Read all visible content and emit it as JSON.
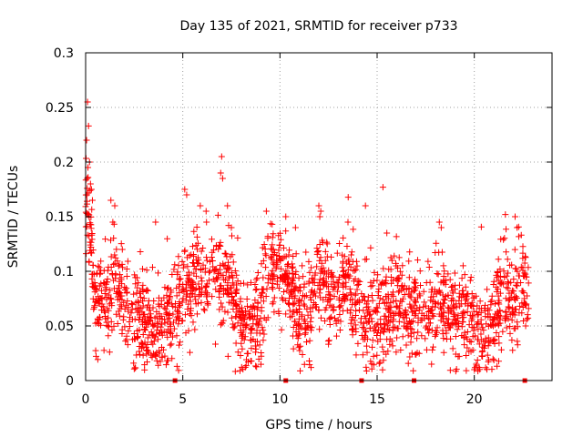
{
  "chart_data": {
    "type": "scatter",
    "title": "Day 135 of 2021, SRMTID for receiver p733",
    "xlabel": "GPS time / hours",
    "ylabel": "SRMTID / TECUs",
    "xlim": [
      0,
      24
    ],
    "ylim": [
      0,
      0.3
    ],
    "x_ticks": [
      0,
      5,
      10,
      15,
      20
    ],
    "x_tick_labels": [
      "0",
      "5",
      "10",
      "15",
      "20"
    ],
    "y_ticks": [
      0,
      0.05,
      0.1,
      0.15,
      0.2,
      0.25,
      0.3
    ],
    "y_tick_labels": [
      "0",
      "0.05",
      "0.1",
      "0.15",
      "0.2",
      "0.25",
      "0.3"
    ],
    "grid": true,
    "marker": "+",
    "color": "#ff0000",
    "gap_markers_x": [
      4.6,
      10.3,
      14.2,
      16.9,
      22.6
    ],
    "gap_markers_y": 0,
    "trend": [
      {
        "x": 0.0,
        "y": 0.17
      },
      {
        "x": 0.25,
        "y": 0.13
      },
      {
        "x": 0.5,
        "y": 0.07
      },
      {
        "x": 1.0,
        "y": 0.07
      },
      {
        "x": 1.5,
        "y": 0.09
      },
      {
        "x": 2.0,
        "y": 0.07
      },
      {
        "x": 2.5,
        "y": 0.055
      },
      {
        "x": 3.0,
        "y": 0.06
      },
      {
        "x": 3.5,
        "y": 0.05
      },
      {
        "x": 4.0,
        "y": 0.045
      },
      {
        "x": 4.5,
        "y": 0.06
      },
      {
        "x": 5.0,
        "y": 0.08
      },
      {
        "x": 5.5,
        "y": 0.09
      },
      {
        "x": 6.0,
        "y": 0.1
      },
      {
        "x": 6.5,
        "y": 0.09
      },
      {
        "x": 7.0,
        "y": 0.1
      },
      {
        "x": 7.5,
        "y": 0.08
      },
      {
        "x": 8.0,
        "y": 0.05
      },
      {
        "x": 8.5,
        "y": 0.045
      },
      {
        "x": 9.0,
        "y": 0.06
      },
      {
        "x": 9.5,
        "y": 0.095
      },
      {
        "x": 10.0,
        "y": 0.1
      },
      {
        "x": 10.5,
        "y": 0.09
      },
      {
        "x": 11.0,
        "y": 0.06
      },
      {
        "x": 11.5,
        "y": 0.065
      },
      {
        "x": 12.0,
        "y": 0.1
      },
      {
        "x": 12.5,
        "y": 0.08
      },
      {
        "x": 13.0,
        "y": 0.075
      },
      {
        "x": 13.5,
        "y": 0.09
      },
      {
        "x": 14.0,
        "y": 0.065
      },
      {
        "x": 14.5,
        "y": 0.06
      },
      {
        "x": 15.0,
        "y": 0.055
      },
      {
        "x": 15.5,
        "y": 0.065
      },
      {
        "x": 16.0,
        "y": 0.075
      },
      {
        "x": 16.5,
        "y": 0.06
      },
      {
        "x": 17.0,
        "y": 0.06
      },
      {
        "x": 17.5,
        "y": 0.065
      },
      {
        "x": 18.0,
        "y": 0.075
      },
      {
        "x": 18.5,
        "y": 0.065
      },
      {
        "x": 19.0,
        "y": 0.06
      },
      {
        "x": 19.5,
        "y": 0.065
      },
      {
        "x": 20.0,
        "y": 0.05
      },
      {
        "x": 20.5,
        "y": 0.045
      },
      {
        "x": 21.0,
        "y": 0.05
      },
      {
        "x": 21.5,
        "y": 0.08
      },
      {
        "x": 22.0,
        "y": 0.075
      },
      {
        "x": 22.5,
        "y": 0.085
      },
      {
        "x": 22.8,
        "y": 0.085
      }
    ],
    "spread": 0.022,
    "points_per_hour": 90,
    "outliers": [
      {
        "x": 0.1,
        "y": 0.255
      },
      {
        "x": 0.15,
        "y": 0.233
      },
      {
        "x": 0.05,
        "y": 0.22
      },
      {
        "x": 0.2,
        "y": 0.2
      },
      {
        "x": 0.12,
        "y": 0.195
      },
      {
        "x": 0.25,
        "y": 0.18
      },
      {
        "x": 0.3,
        "y": 0.175
      },
      {
        "x": 0.35,
        "y": 0.165
      },
      {
        "x": 0.08,
        "y": 0.185
      },
      {
        "x": 1.3,
        "y": 0.165
      },
      {
        "x": 1.5,
        "y": 0.16
      },
      {
        "x": 1.4,
        "y": 0.145
      },
      {
        "x": 3.6,
        "y": 0.145
      },
      {
        "x": 5.1,
        "y": 0.175
      },
      {
        "x": 5.2,
        "y": 0.17
      },
      {
        "x": 5.9,
        "y": 0.16
      },
      {
        "x": 6.2,
        "y": 0.155
      },
      {
        "x": 7.0,
        "y": 0.205
      },
      {
        "x": 6.95,
        "y": 0.19
      },
      {
        "x": 7.05,
        "y": 0.185
      },
      {
        "x": 7.3,
        "y": 0.16
      },
      {
        "x": 7.5,
        "y": 0.14
      },
      {
        "x": 9.3,
        "y": 0.155
      },
      {
        "x": 10.3,
        "y": 0.15
      },
      {
        "x": 10.8,
        "y": 0.14
      },
      {
        "x": 12.0,
        "y": 0.16
      },
      {
        "x": 12.1,
        "y": 0.155
      },
      {
        "x": 12.05,
        "y": 0.15
      },
      {
        "x": 13.5,
        "y": 0.145
      },
      {
        "x": 14.4,
        "y": 0.16
      },
      {
        "x": 15.3,
        "y": 0.177
      },
      {
        "x": 15.5,
        "y": 0.135
      },
      {
        "x": 18.2,
        "y": 0.145
      },
      {
        "x": 18.3,
        "y": 0.14
      },
      {
        "x": 21.6,
        "y": 0.152
      },
      {
        "x": 22.1,
        "y": 0.15
      },
      {
        "x": 22.2,
        "y": 0.14
      },
      {
        "x": 20.0,
        "y": 0.01
      },
      {
        "x": 20.1,
        "y": 0.015
      },
      {
        "x": 11.6,
        "y": 0.012
      },
      {
        "x": 17.8,
        "y": 0.015
      }
    ]
  }
}
